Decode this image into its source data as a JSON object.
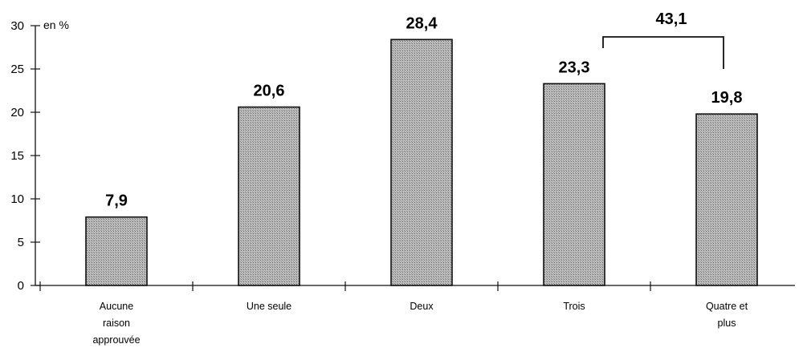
{
  "chart_data": {
    "type": "bar",
    "unit_label": "en %",
    "categories": [
      [
        "Aucune",
        "raison",
        "approuvée"
      ],
      [
        "Une seule"
      ],
      [
        "Deux"
      ],
      [
        "Trois"
      ],
      [
        "Quatre et",
        "plus"
      ]
    ],
    "values": [
      7.9,
      20.6,
      28.4,
      23.3,
      19.8
    ],
    "value_labels": [
      "7,9",
      "20,6",
      "28,4",
      "23,3",
      "19,8"
    ],
    "yticks": [
      0,
      5,
      10,
      15,
      20,
      25,
      30
    ],
    "ylim": [
      0,
      30
    ],
    "bracket": {
      "from_index": 3,
      "to_index": 4,
      "label": "43,1"
    },
    "bar_fill": "#b8b8b8",
    "bar_stroke": "#111111"
  }
}
